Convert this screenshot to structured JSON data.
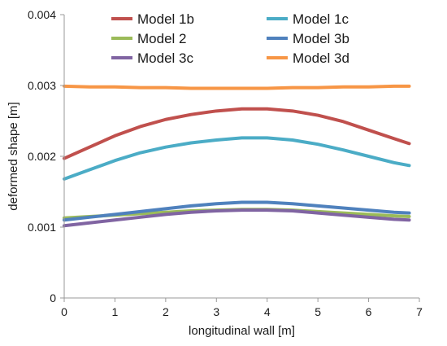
{
  "chart_data": {
    "type": "line",
    "title": "",
    "xlabel": "longitudinal wall [m]",
    "ylabel": "deformed shape [m]",
    "xlim": [
      0,
      7
    ],
    "ylim": [
      0,
      0.004
    ],
    "x_ticks": [
      "0",
      "1",
      "2",
      "3",
      "4",
      "5",
      "6",
      "7"
    ],
    "y_ticks": [
      "0",
      "0.001",
      "0.002",
      "0.003",
      "0.004"
    ],
    "x_tick_values": [
      0,
      1,
      2,
      3,
      4,
      5,
      6,
      7
    ],
    "y_tick_values": [
      0,
      0.001,
      0.002,
      0.003,
      0.004
    ],
    "grid": false,
    "legend_position": "top",
    "series": [
      {
        "name": "Model 1b",
        "color": "#c0504d",
        "x": [
          0,
          0.5,
          1,
          1.5,
          2,
          2.5,
          3,
          3.5,
          4,
          4.5,
          5,
          5.5,
          6,
          6.5,
          6.8
        ],
        "y": [
          0.00197,
          0.00213,
          0.00229,
          0.00242,
          0.00252,
          0.00259,
          0.00264,
          0.00267,
          0.00267,
          0.00264,
          0.00258,
          0.00249,
          0.00237,
          0.00225,
          0.00218
        ]
      },
      {
        "name": "Model 1c",
        "color": "#4bacc6",
        "x": [
          0,
          0.5,
          1,
          1.5,
          2,
          2.5,
          3,
          3.5,
          4,
          4.5,
          5,
          5.5,
          6,
          6.5,
          6.8
        ],
        "y": [
          0.00168,
          0.00181,
          0.00194,
          0.00205,
          0.00213,
          0.00219,
          0.00223,
          0.00226,
          0.00226,
          0.00223,
          0.00217,
          0.00209,
          0.002,
          0.00191,
          0.00187
        ]
      },
      {
        "name": "Model 2",
        "color": "#9bbb59",
        "x": [
          0,
          0.5,
          1,
          1.5,
          2,
          2.5,
          3,
          3.5,
          4,
          4.5,
          5,
          5.5,
          6,
          6.5,
          6.8
        ],
        "y": [
          0.00113,
          0.00115,
          0.00117,
          0.00119,
          0.00121,
          0.00123,
          0.00124,
          0.00125,
          0.00125,
          0.00124,
          0.00122,
          0.0012,
          0.00118,
          0.00116,
          0.00115
        ]
      },
      {
        "name": "Model 3b",
        "color": "#4f81bd",
        "x": [
          0,
          0.5,
          1,
          1.5,
          2,
          2.5,
          3,
          3.5,
          4,
          4.5,
          5,
          5.5,
          6,
          6.5,
          6.8
        ],
        "y": [
          0.0011,
          0.00114,
          0.00118,
          0.00122,
          0.00126,
          0.0013,
          0.00133,
          0.00135,
          0.00135,
          0.00133,
          0.0013,
          0.00127,
          0.00124,
          0.00121,
          0.0012
        ]
      },
      {
        "name": "Model 3c",
        "color": "#8064a2",
        "x": [
          0,
          0.5,
          1,
          1.5,
          2,
          2.5,
          3,
          3.5,
          4,
          4.5,
          5,
          5.5,
          6,
          6.5,
          6.8
        ],
        "y": [
          0.00102,
          0.00106,
          0.0011,
          0.00114,
          0.00118,
          0.00121,
          0.00123,
          0.00124,
          0.00124,
          0.00123,
          0.0012,
          0.00117,
          0.00114,
          0.00111,
          0.0011
        ]
      },
      {
        "name": "Model 3d",
        "color": "#f79646",
        "x": [
          0,
          0.5,
          1,
          1.5,
          2,
          2.5,
          3,
          3.5,
          4,
          4.5,
          5,
          5.5,
          6,
          6.5,
          6.8
        ],
        "y": [
          0.00299,
          0.00298,
          0.00298,
          0.00297,
          0.00297,
          0.00296,
          0.00296,
          0.00296,
          0.00296,
          0.00297,
          0.00297,
          0.00298,
          0.00298,
          0.00299,
          0.00299
        ]
      }
    ]
  }
}
